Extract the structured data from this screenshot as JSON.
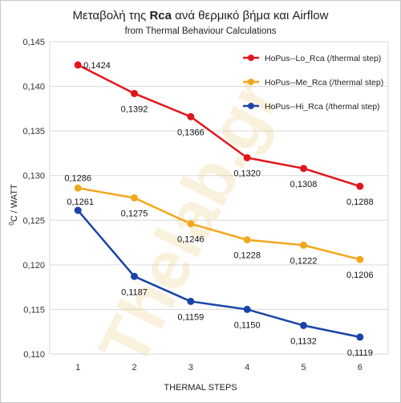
{
  "chart_data": {
    "type": "line",
    "title_prefix": "Μεταβολή της ",
    "title_bold": "Rca",
    "title_suffix": " ανά θερμικό βήμα και  Airflow",
    "subtitle": "from Thermal Behaviour Calculations",
    "xlabel": "THERMAL  STEPS",
    "ylabel_superscript": "0",
    "ylabel_main": "C / WATT",
    "x": [
      1,
      2,
      3,
      4,
      5,
      6
    ],
    "x_tick_labels": [
      "1",
      "2",
      "3",
      "4",
      "5",
      "6"
    ],
    "ylim": [
      0.11,
      0.145
    ],
    "y_ticks": [
      0.11,
      0.115,
      0.12,
      0.125,
      0.13,
      0.135,
      0.14,
      0.145
    ],
    "y_tick_labels": [
      "0,110",
      "0,115",
      "0,120",
      "0,125",
      "0,130",
      "0,135",
      "0,140",
      "0,145"
    ],
    "grid": true,
    "legend_position": "top-right",
    "watermark": "Thelab.gr",
    "series": [
      {
        "name": "HoPus--Lo_Rca (/thermal step)",
        "color": "#e0161b",
        "values": [
          0.1424,
          0.1392,
          0.1366,
          0.132,
          0.1308,
          0.1288
        ],
        "labels": [
          "0,1424",
          "0,1392",
          "0,1366",
          "0,1320",
          "0,1308",
          "0,1288"
        ]
      },
      {
        "name": "HoPus--Me_Rca (/thermal step)",
        "color": "#f2a81d",
        "values": [
          0.1286,
          0.1275,
          0.1246,
          0.1228,
          0.1222,
          0.1206
        ],
        "labels": [
          "0,1286",
          "0,1275",
          "0,1246",
          "0,1228",
          "0,1222",
          "0,1206"
        ]
      },
      {
        "name": "HoPus--Hi_Rca (/thermal step)",
        "color": "#1a44a8",
        "values": [
          0.1261,
          0.1187,
          0.1159,
          0.115,
          0.1132,
          0.1119
        ],
        "labels": [
          "0,1261",
          "0,1187",
          "0,1159",
          "0,1150",
          "0,1132",
          "0,1119"
        ]
      }
    ]
  }
}
